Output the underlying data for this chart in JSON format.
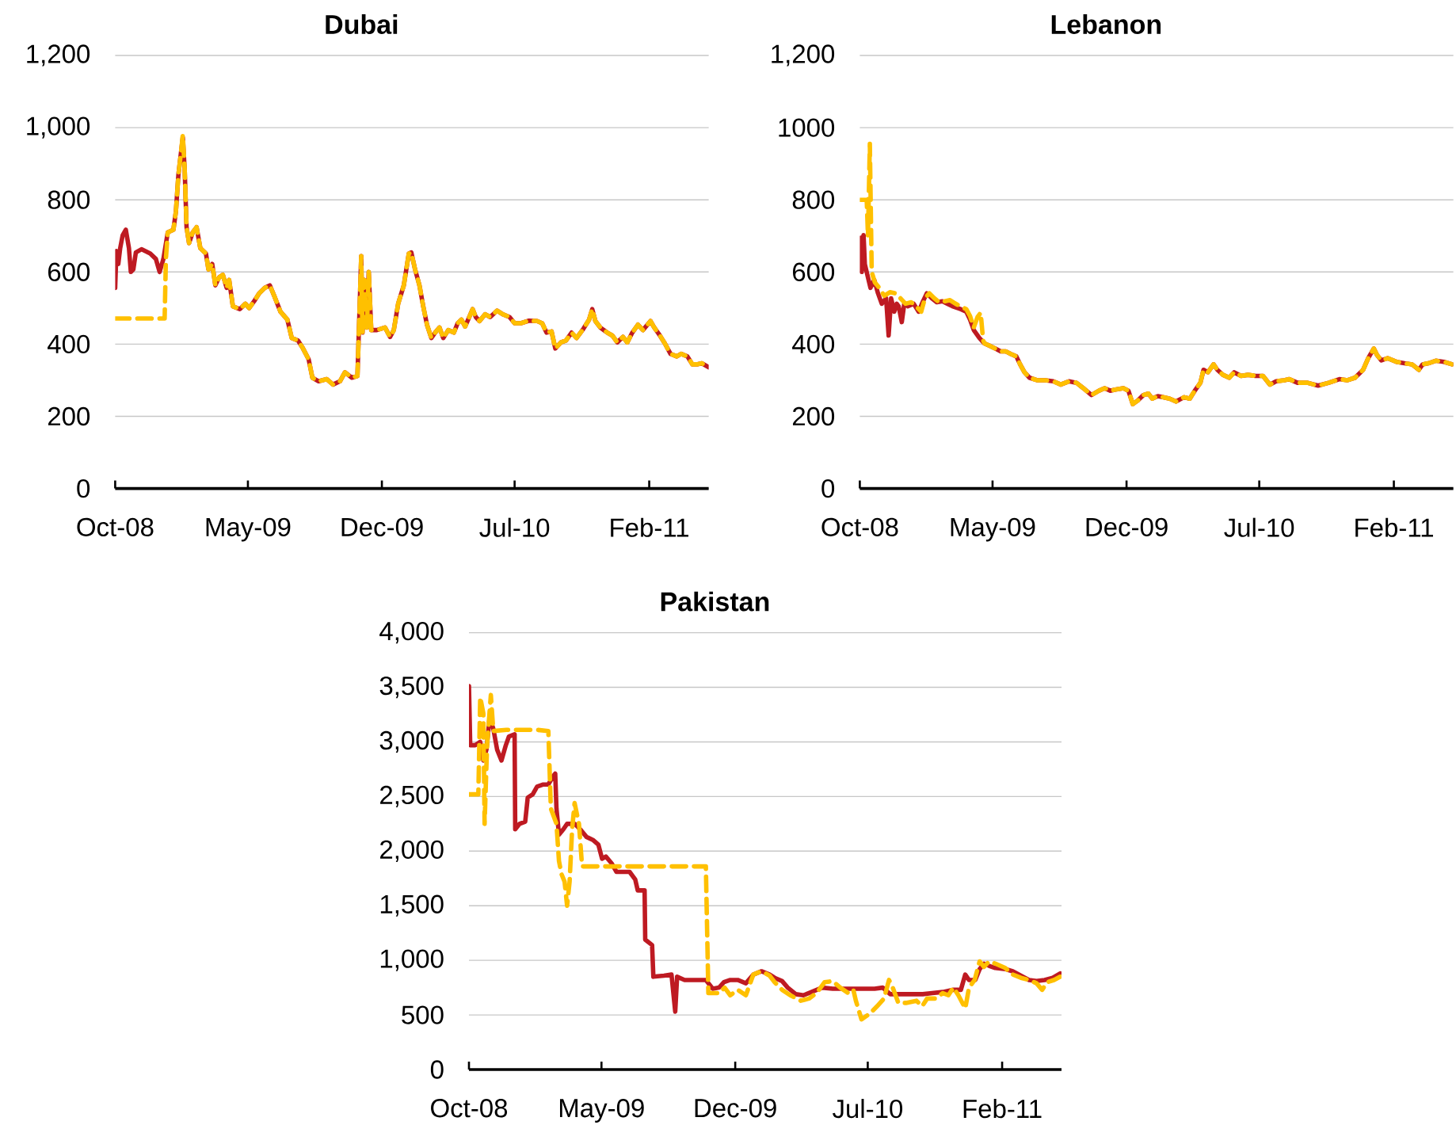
{
  "chart_data": [
    {
      "type": "line",
      "title": "Dubai",
      "xlim": [
        "2008-10-01",
        "2011-05-07"
      ],
      "xticks": [
        {
          "value": "2008-10-01",
          "label": "Oct-08"
        },
        {
          "value": "2009-05-01",
          "label": "May-09"
        },
        {
          "value": "2009-12-01",
          "label": "Dec-09"
        },
        {
          "value": "2010-07-01",
          "label": "Jul-10"
        },
        {
          "value": "2011-02-01",
          "label": "Feb-11"
        }
      ],
      "ylim": [
        0,
        1200
      ],
      "yticks": [
        0,
        200,
        400,
        600,
        800,
        {
          "value": 1000,
          "label": "1,000"
        },
        {
          "value": 1200,
          "label": "1,200"
        }
      ],
      "grid": "y",
      "series": [
        {
          "color": "#be1a22",
          "line_style": "solid",
          "x": [
            "2008-10-01",
            "2008-10-03",
            "2008-10-06",
            "2008-10-09",
            "2008-10-13",
            "2008-10-18",
            "2008-10-23",
            "2008-10-26",
            "2008-10-30",
            "2008-11-03",
            "2008-11-12",
            "2008-11-26",
            "2008-12-05",
            "2008-12-11",
            "2008-12-17",
            "2008-12-24",
            "2009-01-02",
            "2009-01-06",
            "2009-01-10",
            "2009-01-14",
            "2009-01-17",
            "2009-01-20",
            "2009-01-23",
            "2009-01-27",
            "2009-02-02",
            "2009-02-08",
            "2009-02-14",
            "2009-02-23",
            "2009-02-27",
            "2009-03-05",
            "2009-03-10",
            "2009-03-16",
            "2009-03-22",
            "2009-03-28",
            "2009-04-01",
            "2009-04-07",
            "2009-04-18",
            "2009-04-27",
            "2009-05-03",
            "2009-05-11",
            "2009-05-19",
            "2009-05-28",
            "2009-06-05",
            "2009-06-12",
            "2009-06-22",
            "2009-07-03",
            "2009-07-10",
            "2009-07-20",
            "2009-07-28",
            "2009-08-06",
            "2009-08-12",
            "2009-08-22",
            "2009-09-04",
            "2009-09-14",
            "2009-09-25",
            "2009-10-03",
            "2009-10-14",
            "2009-10-23",
            "2009-10-29",
            "2009-10-31",
            "2009-11-03",
            "2009-11-07",
            "2009-11-10",
            "2009-11-14",
            "2009-11-23",
            "2009-12-06",
            "2009-12-14",
            "2009-12-20",
            "2009-12-27",
            "2010-01-05",
            "2010-01-13",
            "2010-01-17",
            "2010-01-23",
            "2010-01-30",
            "2010-02-05",
            "2010-02-11",
            "2010-02-18",
            "2010-02-24",
            "2010-03-03",
            "2010-03-09",
            "2010-03-17",
            "2010-03-26",
            "2010-04-01",
            "2010-04-07",
            "2010-04-13",
            "2010-04-25",
            "2010-04-30",
            "2010-05-06",
            "2010-05-15",
            "2010-05-23",
            "2010-06-03",
            "2010-06-12",
            "2010-06-23",
            "2010-07-01",
            "2010-07-11",
            "2010-07-24",
            "2010-08-06",
            "2010-08-14",
            "2010-08-21",
            "2010-08-29",
            "2010-09-04",
            "2010-09-13",
            "2010-09-21",
            "2010-09-30",
            "2010-10-08",
            "2010-10-19",
            "2010-10-28",
            "2010-11-02",
            "2010-11-07",
            "2010-11-15",
            "2010-11-26",
            "2010-12-04",
            "2010-12-12",
            "2010-12-21",
            "2010-12-28",
            "2011-01-05",
            "2011-01-14",
            "2011-01-22",
            "2011-02-03",
            "2011-02-09",
            "2011-02-18",
            "2011-02-26",
            "2011-03-07",
            "2011-03-17",
            "2011-03-24",
            "2011-04-03",
            "2011-04-11",
            "2011-04-18",
            "2011-04-26",
            "2011-05-07"
          ],
          "values": [
            556,
            658,
            622,
            666,
            702,
            717,
            666,
            600,
            607,
            654,
            663,
            651,
            636,
            600,
            636,
            710,
            717,
            768,
            870,
            929,
            973,
            885,
            724,
            680,
            710,
            724,
            666,
            651,
            607,
            622,
            563,
            585,
            592,
            556,
            578,
            505,
            497,
            512,
            500,
            519,
            541,
            556,
            563,
            534,
            490,
            468,
            417,
            410,
            388,
            358,
            307,
            297,
            303,
            288,
            297,
            322,
            307,
            312,
            644,
            432,
            578,
            446,
            600,
            439,
            439,
            446,
            420,
            439,
            512,
            563,
            651,
            654,
            607,
            563,
            505,
            454,
            417,
            432,
            446,
            417,
            439,
            432,
            458,
            468,
            449,
            497,
            475,
            464,
            483,
            475,
            493,
            483,
            475,
            458,
            458,
            465,
            464,
            458,
            432,
            435,
            388,
            405,
            410,
            432,
            417,
            443,
            468,
            497,
            464,
            446,
            432,
            424,
            405,
            420,
            405,
            432,
            454,
            439,
            464,
            446,
            424,
            402,
            373,
            366,
            373,
            366,
            344,
            344,
            347,
            336
          ]
        },
        {
          "color": "#ffc000",
          "line_style": "dashed",
          "x": [
            "2008-10-01",
            "2008-12-19",
            "2008-12-21",
            "2008-12-24",
            "2009-01-02",
            "2009-01-06",
            "2009-01-10",
            "2009-01-14",
            "2009-01-17",
            "2009-01-20",
            "2009-01-23",
            "2009-01-27",
            "2009-02-02",
            "2009-02-08",
            "2009-02-14",
            "2009-02-23",
            "2009-02-27",
            "2009-03-05",
            "2009-03-10",
            "2009-03-16",
            "2009-03-22",
            "2009-03-28",
            "2009-04-01",
            "2009-04-07",
            "2009-04-18",
            "2009-04-27",
            "2009-05-03",
            "2009-05-11",
            "2009-05-19",
            "2009-05-28",
            "2009-06-05",
            "2009-06-12",
            "2009-06-22",
            "2009-07-03",
            "2009-07-10",
            "2009-07-20",
            "2009-07-28",
            "2009-08-06",
            "2009-08-12",
            "2009-08-22",
            "2009-09-04",
            "2009-09-14",
            "2009-09-25",
            "2009-10-03",
            "2009-10-14",
            "2009-10-23",
            "2009-10-29",
            "2009-10-31",
            "2009-11-03",
            "2009-11-07",
            "2009-11-10",
            "2009-11-14",
            "2009-11-23",
            "2009-12-06",
            "2009-12-14",
            "2009-12-20",
            "2009-12-27",
            "2010-01-05",
            "2010-01-13",
            "2010-01-17",
            "2010-01-23",
            "2010-01-30",
            "2010-02-05",
            "2010-02-11",
            "2010-02-18",
            "2010-02-24",
            "2010-03-03",
            "2010-03-09",
            "2010-03-17",
            "2010-03-26",
            "2010-04-01",
            "2010-04-07",
            "2010-04-13",
            "2010-04-25",
            "2010-04-30",
            "2010-05-06",
            "2010-05-15",
            "2010-05-23",
            "2010-06-03",
            "2010-06-12",
            "2010-06-23",
            "2010-07-01",
            "2010-07-11",
            "2010-07-24",
            "2010-08-06",
            "2010-08-14",
            "2010-08-21",
            "2010-08-29",
            "2010-09-04",
            "2010-09-13",
            "2010-09-21",
            "2010-09-30",
            "2010-10-08",
            "2010-10-19",
            "2010-10-28",
            "2010-11-02",
            "2010-11-07",
            "2010-11-15",
            "2010-11-26",
            "2010-12-04",
            "2010-12-12",
            "2010-12-21",
            "2010-12-28",
            "2011-01-05",
            "2011-01-14",
            "2011-01-22",
            "2011-02-03",
            "2011-02-09",
            "2011-02-18",
            "2011-02-26",
            "2011-03-07",
            "2011-03-17",
            "2011-03-24",
            "2011-04-03",
            "2011-04-11",
            "2011-04-18",
            "2011-04-26",
            "2011-05-07"
          ],
          "values": [
            471,
            471,
            636,
            710,
            717,
            768,
            870,
            929,
            980,
            885,
            724,
            680,
            710,
            724,
            666,
            651,
            607,
            622,
            563,
            585,
            592,
            556,
            578,
            505,
            497,
            512,
            500,
            519,
            541,
            556,
            563,
            534,
            490,
            468,
            417,
            410,
            388,
            358,
            307,
            297,
            303,
            288,
            297,
            322,
            307,
            312,
            644,
            432,
            578,
            446,
            600,
            439,
            439,
            446,
            420,
            439,
            512,
            563,
            651,
            654,
            607,
            563,
            505,
            454,
            417,
            432,
            446,
            417,
            439,
            432,
            458,
            468,
            449,
            497,
            475,
            464,
            483,
            475,
            493,
            483,
            475,
            458,
            458,
            465,
            464,
            458,
            432,
            435,
            388,
            405,
            410,
            432,
            417,
            443,
            468,
            497,
            464,
            446,
            432,
            424,
            405,
            420,
            405,
            432,
            454,
            439,
            464,
            446,
            424,
            402,
            373,
            366,
            373,
            366,
            344,
            344,
            347,
            336
          ]
        }
      ]
    },
    {
      "type": "line",
      "title": "Lebanon",
      "xlim": [
        "2008-10-01",
        "2011-05-07"
      ],
      "xticks": [
        {
          "value": "2008-10-01",
          "label": "Oct-08"
        },
        {
          "value": "2009-05-01",
          "label": "May-09"
        },
        {
          "value": "2009-12-01",
          "label": "Dec-09"
        },
        {
          "value": "2010-07-01",
          "label": "Jul-10"
        },
        {
          "value": "2011-02-01",
          "label": "Feb-11"
        }
      ],
      "ylim": [
        0,
        1200
      ],
      "yticks": [
        0,
        200,
        400,
        600,
        800,
        1000,
        {
          "value": 1200,
          "label": "1,200"
        }
      ],
      "grid": "y",
      "series": [
        {
          "color": "#be1a22",
          "line_style": "solid",
          "x": [
            "2008-10-01",
            "2008-10-03",
            "2008-10-04",
            "2008-10-07",
            "2008-10-09",
            "2008-10-13",
            "2008-10-18",
            "2008-10-24",
            "2008-10-30",
            "2008-11-05",
            "2008-11-12",
            "2008-11-16",
            "2008-11-20",
            "2008-11-25",
            "2008-11-29",
            "2008-12-02",
            "2008-12-07",
            "2008-12-11",
            "2008-12-17",
            "2008-12-26",
            "2009-01-03",
            "2009-01-10",
            "2009-01-16",
            "2009-01-24",
            "2009-02-01",
            "2009-02-10",
            "2009-02-18",
            "2009-02-26",
            "2009-03-11",
            "2009-03-20",
            "2009-03-26",
            "2009-04-01",
            "2009-04-10",
            "2009-04-18",
            "2009-04-27",
            "2009-05-05",
            "2009-05-14",
            "2009-05-22",
            "2009-05-30",
            "2009-06-08",
            "2009-06-14",
            "2009-06-21",
            "2009-06-29",
            "2009-07-11",
            "2009-07-24",
            "2009-08-06",
            "2009-08-18",
            "2009-08-31",
            "2009-09-12",
            "2009-09-23",
            "2009-10-06",
            "2009-10-18",
            "2009-10-27",
            "2009-11-05",
            "2009-11-13",
            "2009-11-26",
            "2009-12-04",
            "2009-12-11",
            "2009-12-19",
            "2009-12-28",
            "2010-01-05",
            "2010-01-11",
            "2010-01-20",
            "2010-01-28",
            "2010-02-08",
            "2010-02-18",
            "2010-03-03",
            "2010-03-12",
            "2010-03-20",
            "2010-03-29",
            "2010-04-03",
            "2010-04-10",
            "2010-04-19",
            "2010-04-25",
            "2010-05-04",
            "2010-05-14",
            "2010-05-22",
            "2010-06-02",
            "2010-06-13",
            "2010-06-25",
            "2010-07-07",
            "2010-07-18",
            "2010-07-28",
            "2010-08-10",
            "2010-08-18",
            "2010-08-31",
            "2010-09-16",
            "2010-10-03",
            "2010-10-20",
            "2010-11-06",
            "2010-11-19",
            "2010-12-01",
            "2010-12-14",
            "2010-12-22",
            "2010-12-31",
            "2011-01-05",
            "2011-01-12",
            "2011-01-22",
            "2011-02-05",
            "2011-02-18",
            "2011-03-02",
            "2011-03-13",
            "2011-03-19",
            "2011-03-28",
            "2011-04-09",
            "2011-04-22",
            "2011-05-05"
          ],
          "values": [
            622,
            695,
            600,
            702,
            622,
            592,
            556,
            578,
            541,
            512,
            527,
            424,
            527,
            490,
            512,
            505,
            461,
            512,
            505,
            512,
            490,
            519,
            541,
            527,
            516,
            519,
            512,
            505,
            497,
            490,
            468,
            439,
            417,
            402,
            395,
            388,
            380,
            380,
            373,
            366,
            344,
            322,
            307,
            300,
            300,
            297,
            288,
            297,
            293,
            278,
            259,
            271,
            278,
            271,
            274,
            278,
            271,
            234,
            244,
            259,
            263,
            249,
            256,
            253,
            249,
            241,
            253,
            249,
            271,
            293,
            329,
            322,
            344,
            329,
            315,
            307,
            322,
            312,
            315,
            312,
            312,
            288,
            297,
            300,
            303,
            293,
            293,
            285,
            293,
            303,
            300,
            307,
            329,
            361,
            388,
            370,
            355,
            361,
            351,
            347,
            344,
            329,
            344,
            347,
            354,
            351,
            344
          ]
        },
        {
          "color": "#ffc000",
          "line_style": "dashed",
          "x": [
            "2008-10-01",
            "2008-10-12",
            "2008-10-14",
            "2008-10-17",
            "2008-10-20",
            "2008-10-25",
            "2008-11-01",
            "2008-11-09",
            "2008-11-18",
            "2008-11-26",
            "2008-12-05",
            "2008-12-13",
            "2008-12-22",
            "2008-12-30",
            "2009-01-07",
            "2009-01-13",
            "2009-01-20",
            "2009-01-28",
            "2009-02-05",
            "2009-02-14",
            "2009-02-22",
            "2009-03-03",
            "2009-03-11",
            "2009-03-20",
            "2009-03-26",
            "2009-04-01",
            "2009-04-07",
            "2009-04-12",
            "2009-04-16",
            "2009-04-18",
            "2009-04-27",
            "2009-05-05",
            "2009-05-14",
            "2009-05-22",
            "2009-05-30",
            "2009-06-08",
            "2009-06-14",
            "2009-06-21",
            "2009-06-29",
            "2009-07-11",
            "2009-07-24",
            "2009-08-06",
            "2009-08-18",
            "2009-08-31",
            "2009-09-12",
            "2009-09-23",
            "2009-10-06",
            "2009-10-18",
            "2009-10-27",
            "2009-11-05",
            "2009-11-13",
            "2009-11-26",
            "2009-12-04",
            "2009-12-11",
            "2009-12-19",
            "2009-12-28",
            "2010-01-05",
            "2010-01-11",
            "2010-01-20",
            "2010-01-28",
            "2010-02-08",
            "2010-02-18",
            "2010-03-03",
            "2010-03-12",
            "2010-03-20",
            "2010-03-29",
            "2010-04-03",
            "2010-04-10",
            "2010-04-19",
            "2010-04-25",
            "2010-05-04",
            "2010-05-14",
            "2010-05-22",
            "2010-06-02",
            "2010-06-13",
            "2010-06-25",
            "2010-07-07",
            "2010-07-18",
            "2010-07-28",
            "2010-08-10",
            "2010-08-18",
            "2010-08-31",
            "2010-09-16",
            "2010-10-03",
            "2010-10-20",
            "2010-11-06",
            "2010-11-19",
            "2010-12-01",
            "2010-12-14",
            "2010-12-22",
            "2010-12-31",
            "2011-01-05",
            "2011-01-12",
            "2011-01-22",
            "2011-02-05",
            "2011-02-18",
            "2011-03-02",
            "2011-03-13",
            "2011-03-19",
            "2011-03-28",
            "2011-04-09",
            "2011-04-22",
            "2011-05-05"
          ],
          "values": [
            800,
            800,
            699,
            955,
            600,
            571,
            556,
            534,
            544,
            541,
            527,
            512,
            516,
            505,
            490,
            527,
            541,
            527,
            516,
            519,
            522,
            512,
            505,
            497,
            478,
            446,
            475,
            487,
            410,
            402,
            395,
            388,
            380,
            380,
            373,
            366,
            344,
            322,
            307,
            300,
            300,
            297,
            288,
            297,
            293,
            278,
            259,
            271,
            278,
            271,
            274,
            278,
            271,
            234,
            244,
            259,
            263,
            249,
            256,
            253,
            249,
            241,
            253,
            249,
            271,
            293,
            329,
            322,
            344,
            329,
            315,
            307,
            322,
            312,
            315,
            312,
            312,
            288,
            297,
            300,
            303,
            293,
            293,
            285,
            293,
            303,
            300,
            307,
            329,
            361,
            388,
            370,
            355,
            361,
            351,
            347,
            344,
            329,
            344,
            347,
            354,
            351,
            344
          ]
        }
      ]
    },
    {
      "type": "line",
      "title": "Pakistan",
      "xlim": [
        "2008-10-01",
        "2011-05-07"
      ],
      "xticks": [
        {
          "value": "2008-10-01",
          "label": "Oct-08"
        },
        {
          "value": "2009-05-01",
          "label": "May-09"
        },
        {
          "value": "2009-12-01",
          "label": "Dec-09"
        },
        {
          "value": "2010-07-01",
          "label": "Jul-10"
        },
        {
          "value": "2011-02-01",
          "label": "Feb-11"
        }
      ],
      "ylim": [
        0,
        4000
      ],
      "yticks": [
        0,
        500,
        {
          "value": 1000,
          "label": "1,000"
        },
        {
          "value": 1500,
          "label": "1,500"
        },
        {
          "value": 2000,
          "label": "2,000"
        },
        {
          "value": 2500,
          "label": "2,500"
        },
        {
          "value": 3000,
          "label": "3,000"
        },
        {
          "value": 3500,
          "label": "3,500"
        },
        {
          "value": 4000,
          "label": "4,000"
        }
      ],
      "grid": "y",
      "series": [
        {
          "color": "#be1a22",
          "line_style": "solid",
          "x": [
            "2008-10-01",
            "2008-10-03",
            "2008-10-11",
            "2008-10-19",
            "2008-10-24",
            "2008-10-29",
            "2008-11-03",
            "2008-11-09",
            "2008-11-15",
            "2008-11-22",
            "2008-11-29",
            "2008-12-04",
            "2008-12-13",
            "2008-12-14",
            "2008-12-21",
            "2008-12-30",
            "2009-01-03",
            "2009-01-11",
            "2009-01-18",
            "2009-01-28",
            "2009-02-05",
            "2009-02-12",
            "2009-02-16",
            "2009-02-18",
            "2009-02-22",
            "2009-03-01",
            "2009-03-07",
            "2009-03-19",
            "2009-03-28",
            "2009-04-07",
            "2009-04-18",
            "2009-04-26",
            "2009-05-02",
            "2009-05-08",
            "2009-05-17",
            "2009-05-25",
            "2009-06-03",
            "2009-06-15",
            "2009-06-24",
            "2009-06-28",
            "2009-07-09",
            "2009-07-10",
            "2009-07-21",
            "2009-07-23",
            "2009-08-09",
            "2009-08-21",
            "2009-08-27",
            "2009-08-30",
            "2009-09-11",
            "2009-09-28",
            "2009-10-15",
            "2009-10-26",
            "2009-11-05",
            "2009-11-13",
            "2009-11-23",
            "2009-12-05",
            "2009-12-18",
            "2009-12-30",
            "2010-01-12",
            "2010-01-25",
            "2010-02-02",
            "2010-02-14",
            "2010-02-23",
            "2010-03-08",
            "2010-03-20",
            "2010-04-02",
            "2010-04-19",
            "2010-05-06",
            "2010-05-22",
            "2010-06-08",
            "2010-06-25",
            "2010-07-12",
            "2010-07-25",
            "2010-08-06",
            "2010-08-23",
            "2010-09-09",
            "2010-09-27",
            "2010-10-12",
            "2010-10-29",
            "2010-11-15",
            "2010-11-27",
            "2010-12-04",
            "2010-12-10",
            "2010-12-20",
            "2010-12-27",
            "2011-01-03",
            "2011-01-11",
            "2011-01-21",
            "2011-02-06",
            "2011-02-18",
            "2011-03-03",
            "2011-03-16",
            "2011-03-28",
            "2011-04-10",
            "2011-04-23",
            "2011-05-05"
          ],
          "values": [
            3510,
            2970,
            2970,
            3000,
            2830,
            2930,
            3220,
            3120,
            2930,
            2830,
            2970,
            3050,
            3070,
            2200,
            2250,
            2270,
            2490,
            2520,
            2590,
            2610,
            2610,
            2680,
            2710,
            2390,
            2150,
            2200,
            2250,
            2250,
            2200,
            2130,
            2100,
            2060,
            1930,
            1950,
            1890,
            1810,
            1810,
            1810,
            1740,
            1640,
            1640,
            1190,
            1140,
            850,
            860,
            870,
            530,
            850,
            820,
            820,
            820,
            740,
            750,
            800,
            820,
            820,
            790,
            870,
            900,
            870,
            840,
            810,
            750,
            690,
            680,
            710,
            750,
            740,
            740,
            740,
            740,
            740,
            750,
            690,
            690,
            690,
            690,
            700,
            710,
            730,
            730,
            870,
            820,
            820,
            920,
            970,
            950,
            930,
            920,
            900,
            860,
            820,
            810,
            820,
            840,
            880
          ]
        },
        {
          "color": "#ffc000",
          "line_style": "dashed",
          "x": [
            "2008-10-01",
            "2008-10-16",
            "2008-10-19",
            "2008-10-24",
            "2008-10-26",
            "2008-10-30",
            "2008-11-05",
            "2008-11-09",
            "2008-11-30",
            "2008-12-25",
            "2009-01-19",
            "2009-02-05",
            "2009-02-09",
            "2009-02-18",
            "2009-02-22",
            "2009-02-26",
            "2009-03-03",
            "2009-03-07",
            "2009-03-11",
            "2009-03-15",
            "2009-03-19",
            "2009-03-26",
            "2009-03-31",
            "2009-05-17",
            "2009-07-06",
            "2009-08-25",
            "2009-10-15",
            "2009-10-19",
            "2009-11-06",
            "2009-11-14",
            "2009-11-23",
            "2009-12-05",
            "2009-12-18",
            "2009-12-30",
            "2010-01-12",
            "2010-01-25",
            "2010-02-02",
            "2010-02-14",
            "2010-02-27",
            "2010-03-16",
            "2010-03-29",
            "2010-04-10",
            "2010-04-23",
            "2010-05-06",
            "2010-05-18",
            "2010-05-31",
            "2010-06-08",
            "2010-06-12",
            "2010-06-21",
            "2010-07-04",
            "2010-07-16",
            "2010-07-27",
            "2010-08-04",
            "2010-08-10",
            "2010-08-19",
            "2010-08-31",
            "2010-09-17",
            "2010-09-26",
            "2010-10-04",
            "2010-10-17",
            "2010-10-29",
            "2010-11-07",
            "2010-11-15",
            "2010-11-23",
            "2010-12-04",
            "2010-12-10",
            "2010-12-19",
            "2010-12-27",
            "2011-01-03",
            "2011-01-11",
            "2011-01-21",
            "2011-02-06",
            "2011-02-18",
            "2011-03-03",
            "2011-03-16",
            "2011-03-28",
            "2011-04-06",
            "2011-04-14",
            "2011-04-25",
            "2011-05-05"
          ],
          "values": [
            2520,
            2520,
            3410,
            3260,
            2250,
            2970,
            3430,
            3100,
            3110,
            3110,
            3110,
            3100,
            2390,
            2250,
            1910,
            1790,
            1720,
            1500,
            1720,
            2200,
            2440,
            2250,
            1860,
            1860,
            1860,
            1860,
            1860,
            700,
            700,
            750,
            680,
            730,
            680,
            870,
            900,
            860,
            800,
            730,
            680,
            630,
            650,
            700,
            800,
            810,
            750,
            700,
            730,
            630,
            460,
            510,
            580,
            650,
            820,
            750,
            610,
            610,
            630,
            580,
            650,
            650,
            700,
            680,
            750,
            680,
            560,
            750,
            820,
            990,
            940,
            990,
            970,
            930,
            870,
            840,
            820,
            790,
            730,
            800,
            820,
            850
          ]
        }
      ]
    }
  ]
}
